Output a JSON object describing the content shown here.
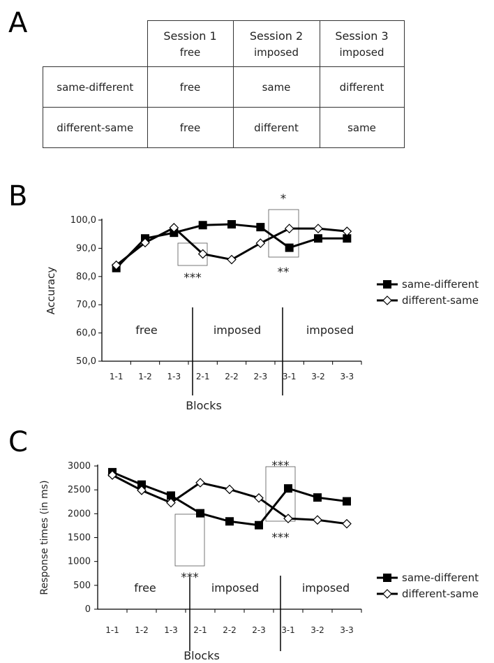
{
  "panel_labels": {
    "a": "A",
    "b": "B",
    "c": "C"
  },
  "design_table": {
    "columns": [
      {
        "title": "Session 1",
        "mode": "free"
      },
      {
        "title": "Session 2",
        "mode": "imposed"
      },
      {
        "title": "Session 3",
        "mode": "imposed"
      }
    ],
    "rows": [
      {
        "label": "same-different",
        "cells": [
          "free",
          "same",
          "different"
        ]
      },
      {
        "label": "different-same",
        "cells": [
          "free",
          "different",
          "same"
        ]
      }
    ]
  },
  "chart_data": [
    {
      "type": "line",
      "panel": "B",
      "ylabel": "Accuracy",
      "xlabel": "Blocks",
      "ylim": [
        50,
        100
      ],
      "yticks": [
        "50,0",
        "60,0",
        "70,0",
        "80,0",
        "90,0",
        "100,0"
      ],
      "categories": [
        "1-1",
        "1-2",
        "1-3",
        "2-1",
        "2-2",
        "2-3",
        "3-1",
        "3-2",
        "3-3"
      ],
      "series": [
        {
          "name": "same-different",
          "marker": "filled-square",
          "color": "#000000",
          "values": [
            83.0,
            93.5,
            95.5,
            98.2,
            98.5,
            97.5,
            90.2,
            93.5,
            93.5
          ]
        },
        {
          "name": "different-same",
          "marker": "open-diamond",
          "color": "#000000",
          "values": [
            84.0,
            92.0,
            97.3,
            88.0,
            86.0,
            91.8,
            97.0,
            97.0,
            96.0
          ]
        }
      ],
      "session_labels": [
        "free",
        "imposed",
        "imposed"
      ],
      "annotations": [
        "***",
        "*",
        "**"
      ],
      "legend_position": "right"
    },
    {
      "type": "line",
      "panel": "C",
      "ylabel": "Response times (in ms)",
      "xlabel": "Blocks",
      "ylim": [
        0,
        3000
      ],
      "yticks": [
        "0",
        "500",
        "1000",
        "1500",
        "2000",
        "2500",
        "3000"
      ],
      "categories": [
        "1-1",
        "1-2",
        "1-3",
        "2-1",
        "2-2",
        "2-3",
        "3-1",
        "3-2",
        "3-3"
      ],
      "series": [
        {
          "name": "same-different",
          "marker": "filled-square",
          "color": "#000000",
          "values": [
            2870,
            2610,
            2380,
            2010,
            1840,
            1760,
            2530,
            2340,
            2260
          ]
        },
        {
          "name": "different-same",
          "marker": "open-diamond",
          "color": "#000000",
          "values": [
            2810,
            2490,
            2230,
            2650,
            2510,
            2330,
            1900,
            1870,
            1790
          ]
        }
      ],
      "session_labels": [
        "free",
        "imposed",
        "imposed"
      ],
      "annotations": [
        "***",
        "***",
        "***"
      ],
      "legend_position": "right"
    }
  ]
}
